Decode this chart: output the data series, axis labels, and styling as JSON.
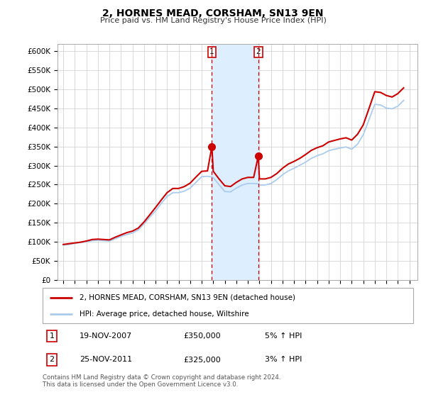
{
  "title": "2, HORNES MEAD, CORSHAM, SN13 9EN",
  "subtitle": "Price paid vs. HM Land Registry's House Price Index (HPI)",
  "background_color": "#ffffff",
  "grid_color": "#cccccc",
  "ylim": [
    0,
    620000
  ],
  "yticks": [
    0,
    50000,
    100000,
    150000,
    200000,
    250000,
    300000,
    350000,
    400000,
    450000,
    500000,
    550000,
    600000
  ],
  "ytick_labels": [
    "£0",
    "£50K",
    "£100K",
    "£150K",
    "£200K",
    "£250K",
    "£300K",
    "£350K",
    "£400K",
    "£450K",
    "£500K",
    "£550K",
    "£600K"
  ],
  "sale1_price": 350000,
  "sale1_label": "1",
  "sale1_x": 2007.88,
  "sale2_price": 325000,
  "sale2_label": "2",
  "sale2_x": 2011.9,
  "shaded_region_color": "#ddeeff",
  "vline_color": "#cc0000",
  "hpi_line_color": "#aaccee",
  "price_line_color": "#cc0000",
  "legend_house_label": "2, HORNES MEAD, CORSHAM, SN13 9EN (detached house)",
  "legend_hpi_label": "HPI: Average price, detached house, Wiltshire",
  "annotation1_date": "19-NOV-2007",
  "annotation1_price": "£350,000",
  "annotation1_hpi": "5% ↑ HPI",
  "annotation2_date": "25-NOV-2011",
  "annotation2_price": "£325,000",
  "annotation2_hpi": "3% ↑ HPI",
  "footer": "Contains HM Land Registry data © Crown copyright and database right 2024.\nThis data is licensed under the Open Government Licence v3.0.",
  "hpi_data": {
    "years": [
      1995.0,
      1995.5,
      1996.0,
      1996.5,
      1997.0,
      1997.5,
      1998.0,
      1998.5,
      1999.0,
      1999.5,
      2000.0,
      2000.5,
      2001.0,
      2001.5,
      2002.0,
      2002.5,
      2003.0,
      2003.5,
      2004.0,
      2004.5,
      2005.0,
      2005.5,
      2006.0,
      2006.5,
      2007.0,
      2007.5,
      2007.88,
      2008.0,
      2008.5,
      2009.0,
      2009.5,
      2010.0,
      2010.5,
      2011.0,
      2011.5,
      2011.9,
      2012.0,
      2012.5,
      2013.0,
      2013.5,
      2014.0,
      2014.5,
      2015.0,
      2015.5,
      2016.0,
      2016.5,
      2017.0,
      2017.5,
      2018.0,
      2018.5,
      2019.0,
      2019.5,
      2020.0,
      2020.5,
      2021.0,
      2021.5,
      2022.0,
      2022.5,
      2023.0,
      2023.5,
      2024.0,
      2024.5
    ],
    "hpi_values": [
      91000,
      93000,
      96000,
      98000,
      100000,
      103000,
      104000,
      103000,
      102000,
      108000,
      114000,
      119000,
      123000,
      131000,
      147000,
      165000,
      181000,
      201000,
      219000,
      229000,
      229000,
      233000,
      241000,
      256000,
      271000,
      272000,
      270000,
      268000,
      250000,
      232000,
      231000,
      241000,
      249000,
      253000,
      253000,
      252000,
      249000,
      249000,
      253000,
      263000,
      276000,
      286000,
      293000,
      301000,
      309000,
      319000,
      326000,
      331000,
      339000,
      343000,
      346000,
      349000,
      343000,
      356000,
      381000,
      421000,
      461000,
      459000,
      451000,
      449000,
      456000,
      471000
    ],
    "price_values": [
      93000,
      95000,
      97000,
      99000,
      102000,
      106000,
      107000,
      106000,
      105000,
      112000,
      118000,
      124000,
      128000,
      136000,
      152000,
      171000,
      190000,
      210000,
      229000,
      240000,
      240000,
      245000,
      254000,
      270000,
      285000,
      286000,
      350000,
      285000,
      265000,
      247000,
      245000,
      256000,
      265000,
      269000,
      269000,
      325000,
      265000,
      265000,
      269000,
      279000,
      293000,
      304000,
      311000,
      319000,
      329000,
      340000,
      347000,
      352000,
      362000,
      366000,
      370000,
      373000,
      367000,
      382000,
      407000,
      450000,
      494000,
      492000,
      484000,
      480000,
      489000,
      504000
    ]
  }
}
